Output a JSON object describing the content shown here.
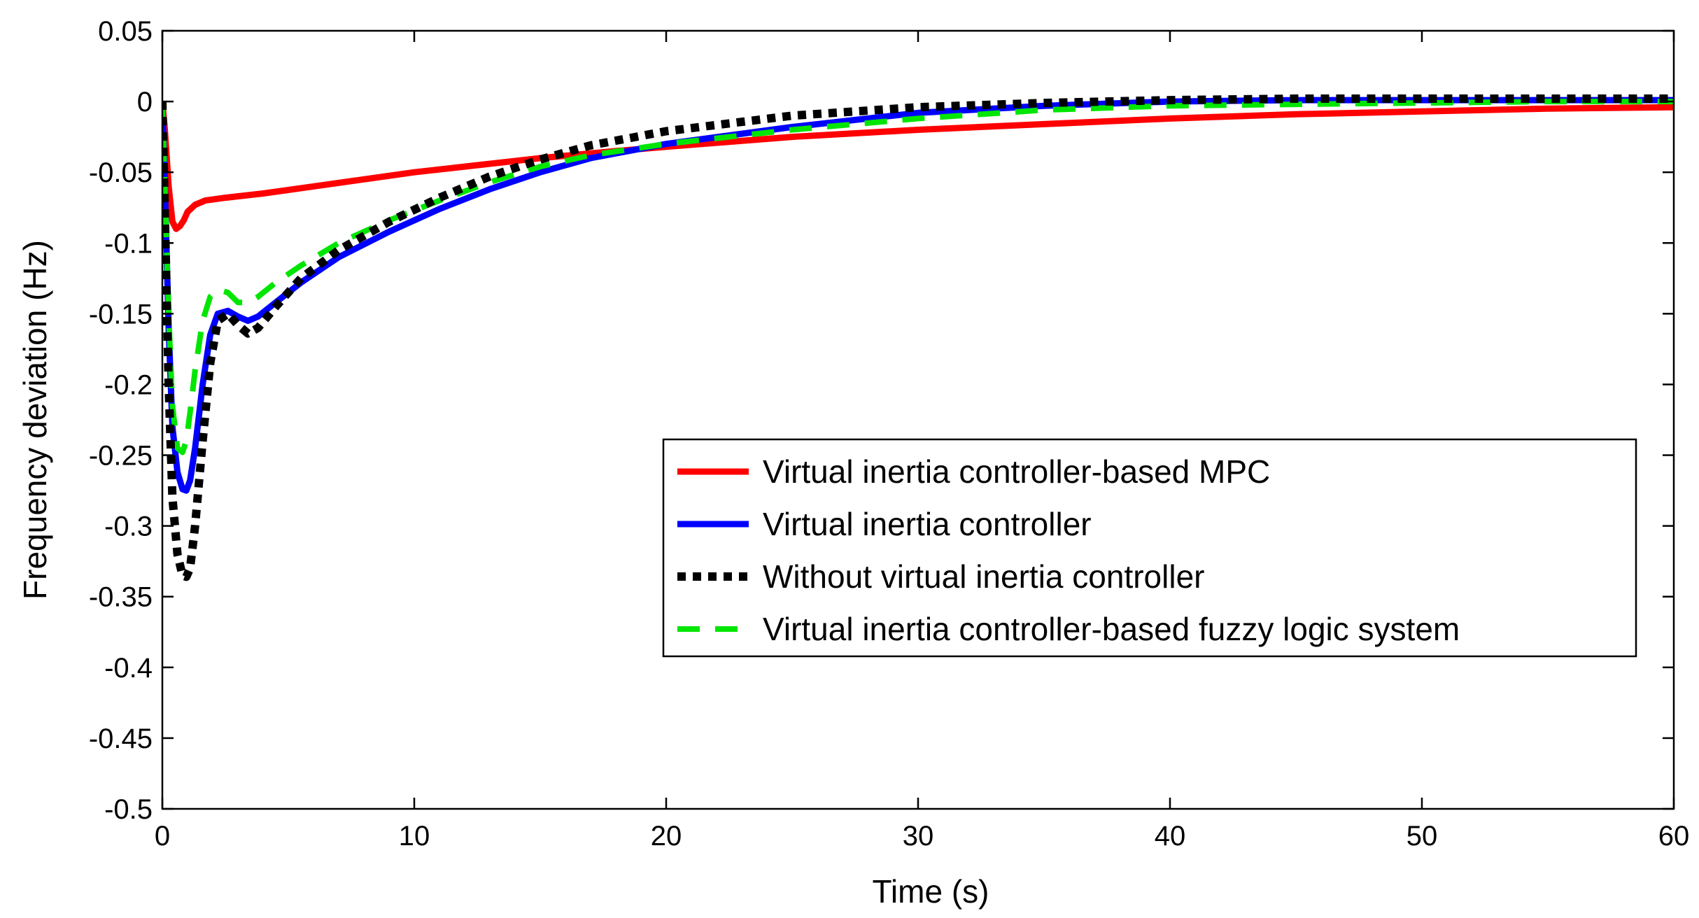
{
  "chart_data": {
    "type": "line",
    "title": "",
    "xlabel": "Time (s)",
    "ylabel": "Frequency deviation (Hz)",
    "xlim": [
      0,
      60
    ],
    "ylim": [
      -0.5,
      0.05
    ],
    "xticks": [
      0,
      10,
      20,
      30,
      40,
      50,
      60
    ],
    "xtick_labels": [
      "0",
      "10",
      "20",
      "30",
      "40",
      "50",
      "60"
    ],
    "yticks": [
      0.05,
      0,
      -0.05,
      -0.1,
      -0.15,
      -0.2,
      -0.25,
      -0.3,
      -0.35,
      -0.4,
      -0.45,
      -0.5
    ],
    "ytick_labels": [
      "0.05",
      "0",
      "-0.05",
      "-0.1",
      "-0.15",
      "-0.2",
      "-0.25",
      "-0.3",
      "-0.35",
      "-0.4",
      "-0.45",
      "-0.5"
    ],
    "grid": false,
    "legend_position": "center-right",
    "series": [
      {
        "name": "Virtual inertia controller-based MPC",
        "color": "#ff0000",
        "style": "solid",
        "x": [
          0,
          0.1,
          0.25,
          0.4,
          0.55,
          0.7,
          0.85,
          1.0,
          1.3,
          1.7,
          2.5,
          4,
          6,
          8,
          10,
          12,
          15,
          18,
          20,
          25,
          30,
          35,
          40,
          45,
          50,
          55,
          60
        ],
        "y": [
          0,
          -0.02,
          -0.06,
          -0.085,
          -0.09,
          -0.088,
          -0.084,
          -0.078,
          -0.073,
          -0.07,
          -0.068,
          -0.065,
          -0.06,
          -0.055,
          -0.05,
          -0.046,
          -0.04,
          -0.035,
          -0.032,
          -0.025,
          -0.02,
          -0.016,
          -0.012,
          -0.009,
          -0.007,
          -0.005,
          -0.004
        ]
      },
      {
        "name": "Virtual inertia controller",
        "color": "#0000ff",
        "style": "solid",
        "x": [
          0,
          0.1,
          0.25,
          0.4,
          0.6,
          0.8,
          0.95,
          1.1,
          1.3,
          1.6,
          1.9,
          2.2,
          2.6,
          3.0,
          3.4,
          3.8,
          4.5,
          5.5,
          7,
          9,
          11,
          13,
          15,
          17,
          20,
          25,
          30,
          35,
          40,
          45,
          50,
          55,
          60
        ],
        "y": [
          0,
          -0.06,
          -0.16,
          -0.23,
          -0.262,
          -0.274,
          -0.275,
          -0.268,
          -0.245,
          -0.2,
          -0.165,
          -0.15,
          -0.148,
          -0.152,
          -0.155,
          -0.152,
          -0.142,
          -0.128,
          -0.11,
          -0.092,
          -0.076,
          -0.062,
          -0.05,
          -0.04,
          -0.03,
          -0.018,
          -0.008,
          -0.003,
          0.0,
          0.001,
          0.001,
          0.001,
          0.001
        ]
      },
      {
        "name": "Without virtual inertia controller",
        "color": "#000000",
        "style": "dotted",
        "x": [
          0,
          0.1,
          0.25,
          0.4,
          0.6,
          0.8,
          0.95,
          1.1,
          1.3,
          1.6,
          1.9,
          2.2,
          2.6,
          3.0,
          3.4,
          3.8,
          4.5,
          5.5,
          7,
          9,
          11,
          13,
          15,
          17,
          20,
          25,
          30,
          35,
          40,
          45,
          50,
          55,
          60
        ],
        "y": [
          0,
          -0.08,
          -0.2,
          -0.28,
          -0.32,
          -0.335,
          -0.336,
          -0.33,
          -0.3,
          -0.24,
          -0.185,
          -0.155,
          -0.15,
          -0.158,
          -0.164,
          -0.16,
          -0.145,
          -0.125,
          -0.105,
          -0.085,
          -0.068,
          -0.053,
          -0.041,
          -0.031,
          -0.021,
          -0.01,
          -0.004,
          -0.001,
          0.001,
          0.002,
          0.002,
          0.002,
          0.002
        ]
      },
      {
        "name": "Virtual inertia controller-based fuzzy logic system",
        "color": "#00e600",
        "style": "dashed",
        "x": [
          0,
          0.1,
          0.25,
          0.4,
          0.6,
          0.8,
          0.95,
          1.1,
          1.3,
          1.6,
          1.9,
          2.2,
          2.6,
          3.0,
          3.4,
          3.8,
          4.5,
          5.5,
          7,
          9,
          11,
          13,
          15,
          17,
          20,
          25,
          30,
          35,
          40,
          45,
          50,
          55,
          60
        ],
        "y": [
          0,
          -0.06,
          -0.15,
          -0.215,
          -0.245,
          -0.248,
          -0.24,
          -0.22,
          -0.19,
          -0.155,
          -0.138,
          -0.133,
          -0.135,
          -0.142,
          -0.142,
          -0.138,
          -0.128,
          -0.116,
          -0.1,
          -0.084,
          -0.07,
          -0.057,
          -0.046,
          -0.038,
          -0.03,
          -0.02,
          -0.012,
          -0.006,
          -0.003,
          -0.002,
          -0.001,
          0.0,
          0.0
        ]
      }
    ]
  }
}
